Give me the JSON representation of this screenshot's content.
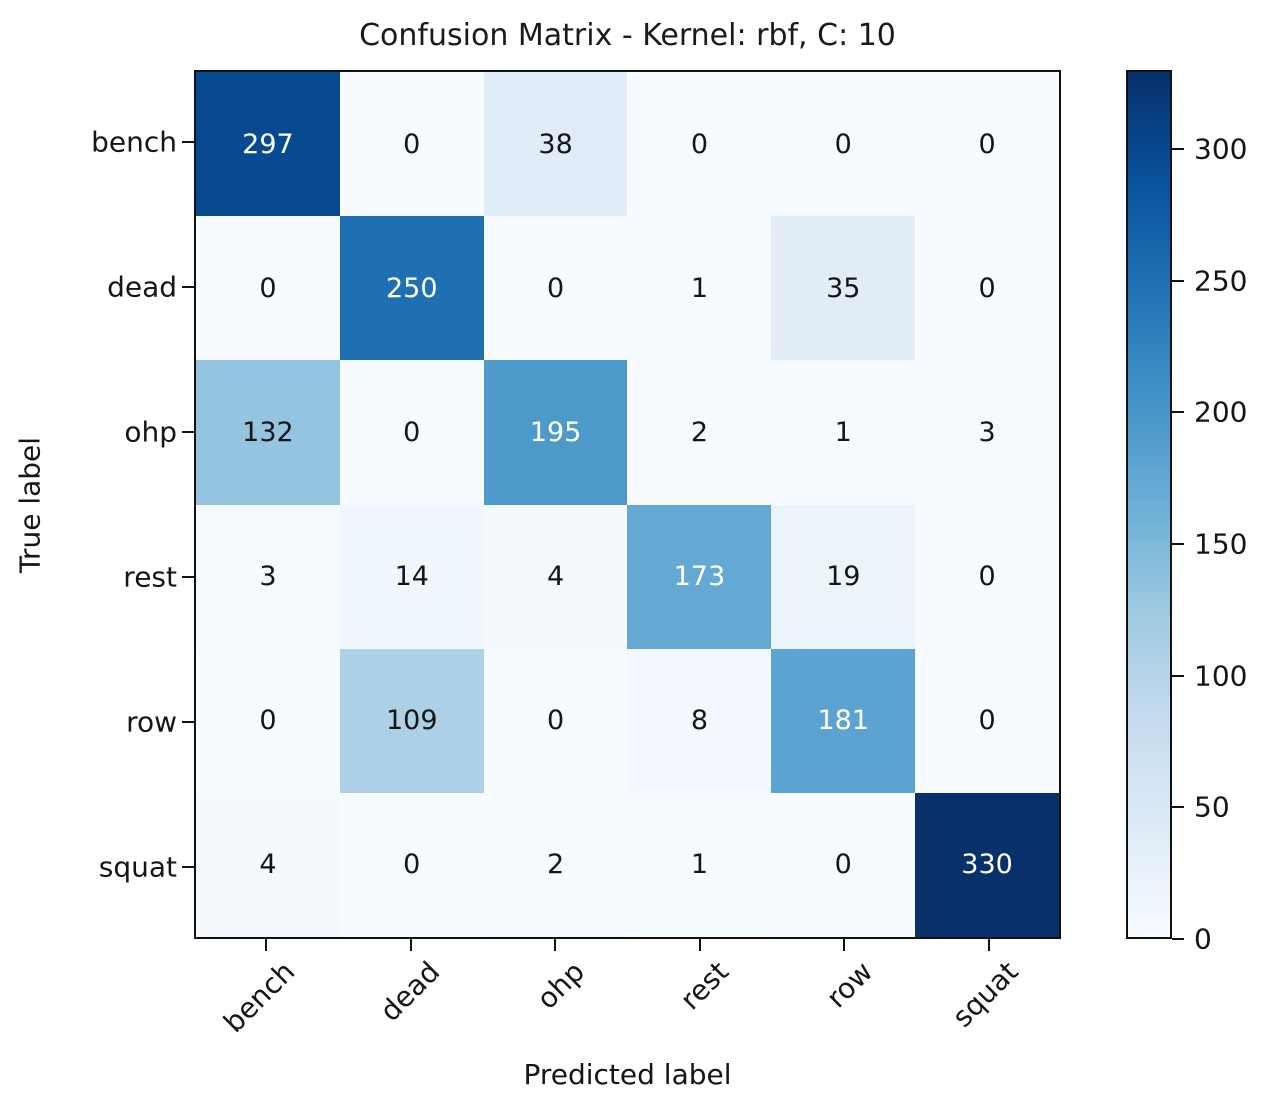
{
  "chart_data": {
    "type": "heatmap",
    "title": "Confusion Matrix - Kernel: rbf, C: 10",
    "xlabel": "Predicted label",
    "ylabel": "True label",
    "x_tick_labels": [
      "bench",
      "dead",
      "ohp",
      "rest",
      "row",
      "squat"
    ],
    "y_tick_labels": [
      "bench",
      "dead",
      "ohp",
      "rest",
      "row",
      "squat"
    ],
    "matrix": [
      [
        297,
        0,
        38,
        0,
        0,
        0
      ],
      [
        0,
        250,
        0,
        1,
        35,
        0
      ],
      [
        132,
        0,
        195,
        2,
        1,
        3
      ],
      [
        3,
        14,
        4,
        173,
        19,
        0
      ],
      [
        0,
        109,
        0,
        8,
        181,
        0
      ],
      [
        4,
        0,
        2,
        1,
        0,
        330
      ]
    ],
    "vmin": 0,
    "vmax": 330,
    "colorbar_ticks": [
      0,
      50,
      100,
      150,
      200,
      250,
      300
    ],
    "colormap": "Blues",
    "colormap_stops": [
      {
        "at": 0.0,
        "color": "#f7fbff"
      },
      {
        "at": 0.125,
        "color": "#deebf7"
      },
      {
        "at": 0.25,
        "color": "#c6dbef"
      },
      {
        "at": 0.375,
        "color": "#9ecae1"
      },
      {
        "at": 0.5,
        "color": "#6baed6"
      },
      {
        "at": 0.625,
        "color": "#4292c6"
      },
      {
        "at": 0.75,
        "color": "#2171b5"
      },
      {
        "at": 0.875,
        "color": "#08519c"
      },
      {
        "at": 1.0,
        "color": "#08306b"
      }
    ],
    "text_color_threshold": 165,
    "cell_text_colors": {
      "dark_cells": "#ffffff",
      "light_cells": "#151515"
    },
    "axis_color": "#111111",
    "legend_position": "right-colorbar",
    "grid": false
  }
}
